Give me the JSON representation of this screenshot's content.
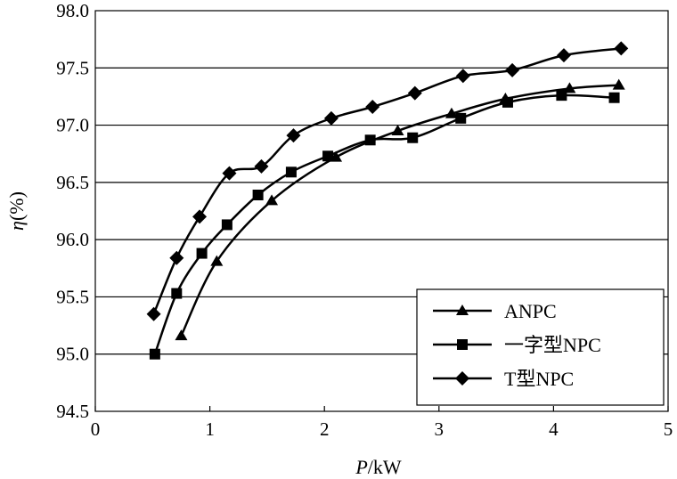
{
  "chart_data": {
    "type": "line",
    "title": "",
    "xlabel_italic": "P",
    "xlabel_unit": "/kW",
    "ylabel_italic": "η",
    "ylabel_unit": "(%)",
    "xlim": [
      0,
      5
    ],
    "ylim": [
      94.5,
      98.0
    ],
    "xticks": [
      "0",
      "1",
      "2",
      "3",
      "4",
      "5"
    ],
    "yticks": [
      "94.5",
      "95.0",
      "95.5",
      "96.0",
      "96.5",
      "97.0",
      "97.5",
      "98.0"
    ],
    "grid": "horizontal",
    "legend_position": "bottom-right",
    "series": [
      {
        "name": "ANPC",
        "marker": "triangle",
        "x": [
          0.75,
          1.06,
          1.54,
          2.1,
          2.64,
          3.11,
          3.58,
          4.14,
          4.57
        ],
        "y": [
          95.16,
          95.81,
          96.34,
          96.72,
          96.95,
          97.1,
          97.23,
          97.32,
          97.35
        ]
      },
      {
        "name": "一字型NPC",
        "marker": "square",
        "x": [
          0.52,
          0.71,
          0.93,
          1.15,
          1.42,
          1.71,
          2.03,
          2.4,
          2.77,
          3.19,
          3.6,
          4.07,
          4.53
        ],
        "y": [
          95.0,
          95.53,
          95.88,
          96.13,
          96.39,
          96.59,
          96.73,
          96.87,
          96.89,
          97.06,
          97.2,
          97.26,
          97.24
        ]
      },
      {
        "name": "T型NPC",
        "marker": "diamond",
        "x": [
          0.51,
          0.71,
          0.91,
          1.17,
          1.45,
          1.73,
          2.06,
          2.42,
          2.79,
          3.21,
          3.64,
          4.09,
          4.59
        ],
        "y": [
          95.35,
          95.84,
          96.2,
          96.58,
          96.64,
          96.91,
          97.06,
          97.16,
          97.28,
          97.43,
          97.48,
          97.61,
          97.67
        ]
      }
    ]
  }
}
